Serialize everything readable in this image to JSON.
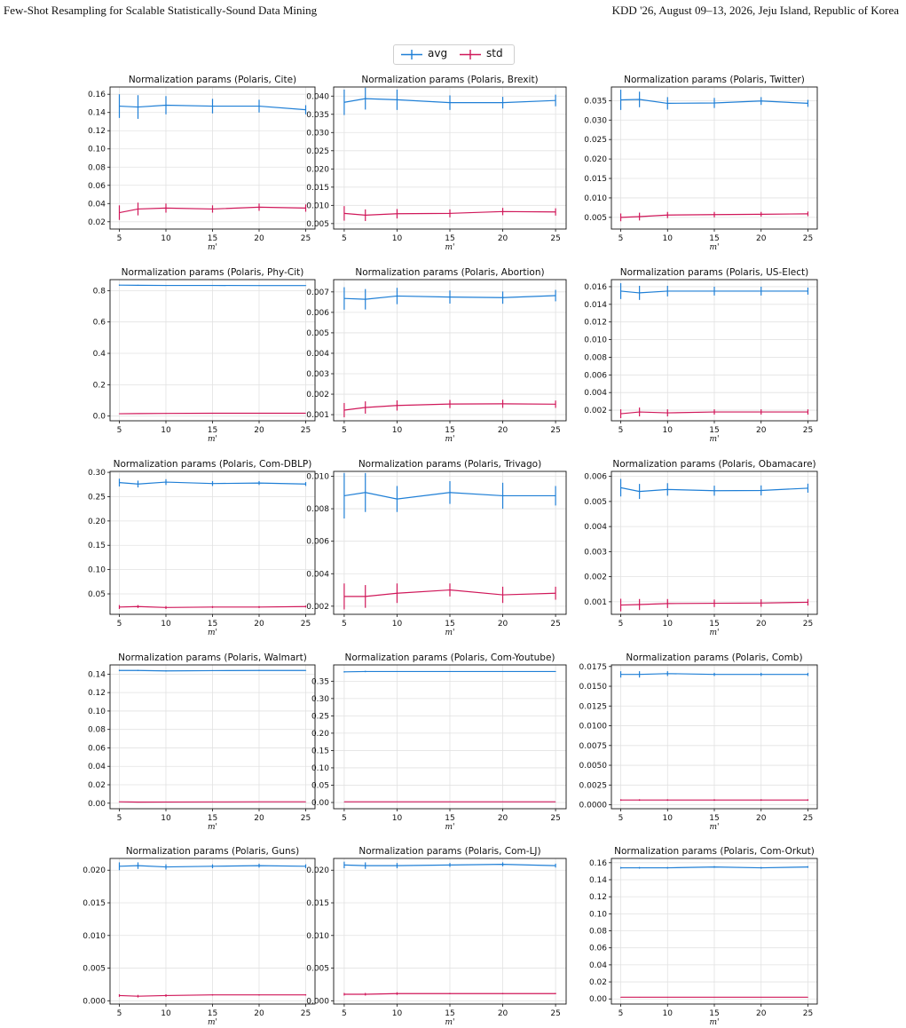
{
  "header": {
    "left": "Few-Shot Resampling for Scalable Statistically-Sound Data Mining",
    "right": "KDD '26, August 09–13, 2026, Jeju Island, Republic of Korea"
  },
  "legend": {
    "items": [
      "avg",
      "std"
    ]
  },
  "colors": {
    "avg": "#1f7fd6",
    "std": "#d0185a",
    "grid": "#e2e2e2",
    "axis": "#111111"
  },
  "chart_data": [
    {
      "type": "line",
      "title": "Normalization params (Polaris, Cite)",
      "xlabel": "m'",
      "x": [
        5,
        7,
        10,
        15,
        20,
        25
      ],
      "yticks": [
        "0.02",
        "0.04",
        "0.06",
        "0.08",
        "0.10",
        "0.12",
        "0.14",
        "0.16"
      ],
      "ylim": [
        0.012,
        0.168
      ],
      "series": [
        {
          "name": "avg",
          "values": [
            0.147,
            0.146,
            0.148,
            0.147,
            0.147,
            0.143
          ],
          "err": [
            0.013,
            0.013,
            0.01,
            0.008,
            0.007,
            0.005
          ]
        },
        {
          "name": "std",
          "values": [
            0.03,
            0.034,
            0.035,
            0.034,
            0.036,
            0.035
          ],
          "err": [
            0.008,
            0.007,
            0.005,
            0.004,
            0.004,
            0.004
          ]
        }
      ]
    },
    {
      "type": "line",
      "title": "Normalization params (Polaris, Brexit)",
      "xlabel": "m'",
      "x": [
        5,
        7,
        10,
        15,
        20,
        25
      ],
      "yticks": [
        "0.005",
        "0.010",
        "0.015",
        "0.020",
        "0.025",
        "0.030",
        "0.035",
        "0.040"
      ],
      "ylim": [
        0.0035,
        0.0425
      ],
      "series": [
        {
          "name": "avg",
          "values": [
            0.0383,
            0.0393,
            0.039,
            0.0382,
            0.0382,
            0.0388
          ],
          "err": [
            0.0035,
            0.003,
            0.0028,
            0.002,
            0.0016,
            0.0016
          ]
        },
        {
          "name": "std",
          "values": [
            0.0078,
            0.0073,
            0.0077,
            0.0078,
            0.0083,
            0.0082
          ],
          "err": [
            0.002,
            0.0016,
            0.0013,
            0.0011,
            0.001,
            0.001
          ]
        }
      ]
    },
    {
      "type": "line",
      "title": "Normalization params (Polaris, Twitter)",
      "xlabel": "m'",
      "x": [
        5,
        7,
        10,
        15,
        20,
        25
      ],
      "yticks": [
        "0.005",
        "0.010",
        "0.015",
        "0.020",
        "0.025",
        "0.030",
        "0.035"
      ],
      "ylim": [
        0.002,
        0.0385
      ],
      "series": [
        {
          "name": "avg",
          "values": [
            0.0352,
            0.0353,
            0.0343,
            0.0344,
            0.0349,
            0.0343
          ],
          "err": [
            0.0026,
            0.002,
            0.0016,
            0.0013,
            0.001,
            0.0009
          ]
        },
        {
          "name": "std",
          "values": [
            0.005,
            0.0052,
            0.0056,
            0.0057,
            0.0058,
            0.0059
          ],
          "err": [
            0.001,
            0.001,
            0.0008,
            0.0007,
            0.0006,
            0.0006
          ]
        }
      ]
    },
    {
      "type": "line",
      "title": "Normalization params (Polaris, Phy-Cit)",
      "xlabel": "m'",
      "x": [
        5,
        7,
        10,
        15,
        20,
        25
      ],
      "yticks": [
        "0.0",
        "0.2",
        "0.4",
        "0.6",
        "0.8"
      ],
      "ylim": [
        -0.03,
        0.87
      ],
      "series": [
        {
          "name": "avg",
          "values": [
            0.835,
            0.834,
            0.833,
            0.833,
            0.832,
            0.832
          ],
          "err": [
            0.004,
            0.003,
            0.003,
            0.002,
            0.002,
            0.002
          ]
        },
        {
          "name": "std",
          "values": [
            0.015,
            0.016,
            0.017,
            0.018,
            0.018,
            0.018
          ],
          "err": [
            0.002,
            0.002,
            0.002,
            0.001,
            0.001,
            0.001
          ]
        }
      ]
    },
    {
      "type": "line",
      "title": "Normalization params (Polaris, Abortion)",
      "xlabel": "m'",
      "x": [
        5,
        7,
        10,
        15,
        20,
        25
      ],
      "yticks": [
        "0.001",
        "0.002",
        "0.003",
        "0.004",
        "0.005",
        "0.006",
        "0.007"
      ],
      "ylim": [
        0.0007,
        0.0076
      ],
      "series": [
        {
          "name": "avg",
          "values": [
            0.00668,
            0.00664,
            0.0068,
            0.00675,
            0.00672,
            0.00682
          ],
          "err": [
            0.00055,
            0.0005,
            0.0004,
            0.00032,
            0.0003,
            0.00028
          ]
        },
        {
          "name": "std",
          "values": [
            0.00122,
            0.00135,
            0.00145,
            0.00152,
            0.00153,
            0.00151
          ],
          "err": [
            0.00035,
            0.0003,
            0.00025,
            0.0002,
            0.0002,
            0.00018
          ]
        }
      ]
    },
    {
      "type": "line",
      "title": "Normalization params (Polaris, US-Elect)",
      "xlabel": "m'",
      "x": [
        5,
        7,
        10,
        15,
        20,
        25
      ],
      "yticks": [
        "0.002",
        "0.004",
        "0.006",
        "0.008",
        "0.010",
        "0.012",
        "0.014",
        "0.016"
      ],
      "ylim": [
        0.0008,
        0.0168
      ],
      "series": [
        {
          "name": "avg",
          "values": [
            0.0155,
            0.0153,
            0.0155,
            0.0155,
            0.0155,
            0.0155
          ],
          "err": [
            0.0009,
            0.0008,
            0.0006,
            0.0005,
            0.0005,
            0.0004
          ]
        },
        {
          "name": "std",
          "values": [
            0.0016,
            0.0018,
            0.0017,
            0.0018,
            0.0018,
            0.0018
          ],
          "err": [
            0.0005,
            0.0005,
            0.0004,
            0.0003,
            0.0003,
            0.0003
          ]
        }
      ]
    },
    {
      "type": "line",
      "title": "Normalization params (Polaris, Com-DBLP)",
      "xlabel": "m'",
      "x": [
        5,
        7,
        10,
        15,
        20,
        25
      ],
      "yticks": [
        "0.05",
        "0.10",
        "0.15",
        "0.20",
        "0.25",
        "0.30"
      ],
      "ylim": [
        0.008,
        0.302
      ],
      "series": [
        {
          "name": "avg",
          "values": [
            0.279,
            0.276,
            0.28,
            0.277,
            0.278,
            0.276
          ],
          "err": [
            0.008,
            0.007,
            0.006,
            0.005,
            0.004,
            0.004
          ]
        },
        {
          "name": "std",
          "values": [
            0.023,
            0.024,
            0.022,
            0.023,
            0.023,
            0.024
          ],
          "err": [
            0.004,
            0.003,
            0.003,
            0.002,
            0.002,
            0.002
          ]
        }
      ]
    },
    {
      "type": "line",
      "title": "Normalization params (Polaris, Trivago)",
      "xlabel": "m'",
      "x": [
        5,
        7,
        10,
        15,
        20,
        25
      ],
      "yticks": [
        "0.002",
        "0.004",
        "0.006",
        "0.008",
        "0.010"
      ],
      "ylim": [
        0.0015,
        0.0103
      ],
      "series": [
        {
          "name": "avg",
          "values": [
            0.0088,
            0.009,
            0.0086,
            0.009,
            0.0088,
            0.0088
          ],
          "err": [
            0.0014,
            0.0012,
            0.0008,
            0.0007,
            0.0008,
            0.0006
          ]
        },
        {
          "name": "std",
          "values": [
            0.0026,
            0.0026,
            0.0028,
            0.003,
            0.0027,
            0.0028
          ],
          "err": [
            0.0008,
            0.0007,
            0.0006,
            0.0004,
            0.0005,
            0.0004
          ]
        }
      ]
    },
    {
      "type": "line",
      "title": "Normalization params (Polaris, Obamacare)",
      "xlabel": "m'",
      "x": [
        5,
        7,
        10,
        15,
        20,
        25
      ],
      "yticks": [
        "0.001",
        "0.002",
        "0.003",
        "0.004",
        "0.005",
        "0.006"
      ],
      "ylim": [
        0.0005,
        0.0062
      ],
      "series": [
        {
          "name": "avg",
          "values": [
            0.00555,
            0.0054,
            0.00548,
            0.00543,
            0.00544,
            0.00553
          ],
          "err": [
            0.00035,
            0.0003,
            0.00025,
            0.0002,
            0.0002,
            0.00018
          ]
        },
        {
          "name": "std",
          "values": [
            0.00087,
            0.00089,
            0.00093,
            0.00094,
            0.00095,
            0.00098
          ],
          "err": [
            0.00025,
            0.00022,
            0.00018,
            0.00015,
            0.00015,
            0.00013
          ]
        }
      ]
    },
    {
      "type": "line",
      "title": "Normalization params (Polaris, Walmart)",
      "xlabel": "m'",
      "x": [
        5,
        7,
        10,
        15,
        20,
        25
      ],
      "yticks": [
        "0.00",
        "0.02",
        "0.04",
        "0.06",
        "0.08",
        "0.10",
        "0.12",
        "0.14"
      ],
      "ylim": [
        -0.006,
        0.15
      ],
      "series": [
        {
          "name": "avg",
          "values": [
            0.144,
            0.144,
            0.1435,
            0.1438,
            0.144,
            0.144
          ],
          "err": [
            0.0008,
            0.0007,
            0.0006,
            0.0005,
            0.0005,
            0.0004
          ]
        },
        {
          "name": "std",
          "values": [
            0.0015,
            0.0012,
            0.0013,
            0.0014,
            0.0015,
            0.0015
          ],
          "err": [
            0.0004,
            0.0004,
            0.0003,
            0.0002,
            0.0002,
            0.0002
          ]
        }
      ]
    },
    {
      "type": "line",
      "title": "Normalization params (Polaris, Com-Youtube)",
      "xlabel": "m'",
      "x": [
        5,
        7,
        10,
        15,
        20,
        25
      ],
      "yticks": [
        "0.00",
        "0.05",
        "0.10",
        "0.15",
        "0.20",
        "0.25",
        "0.30",
        "0.35"
      ],
      "ylim": [
        -0.018,
        0.397
      ],
      "series": [
        {
          "name": "avg",
          "values": [
            0.377,
            0.378,
            0.378,
            0.378,
            0.378,
            0.378
          ],
          "err": [
            0.002,
            0.002,
            0.001,
            0.001,
            0.001,
            0.001
          ]
        },
        {
          "name": "std",
          "values": [
            0.002,
            0.002,
            0.002,
            0.002,
            0.002,
            0.002
          ],
          "err": [
            0.0005,
            0.0005,
            0.0004,
            0.0003,
            0.0003,
            0.0003
          ]
        }
      ]
    },
    {
      "type": "line",
      "title": "Normalization params (Polaris, Comb)",
      "xlabel": "m'",
      "x": [
        5,
        7,
        10,
        15,
        20,
        25
      ],
      "yticks": [
        "0.0000",
        "0.0025",
        "0.0050",
        "0.0075",
        "0.0100",
        "0.0125",
        "0.0150",
        "0.0175"
      ],
      "ylim": [
        -0.0005,
        0.0177
      ],
      "series": [
        {
          "name": "avg",
          "values": [
            0.0165,
            0.0165,
            0.0166,
            0.0165,
            0.0165,
            0.0165
          ],
          "err": [
            0.0004,
            0.0004,
            0.0003,
            0.0002,
            0.0002,
            0.0002
          ]
        },
        {
          "name": "std",
          "values": [
            0.0006,
            0.0006,
            0.0006,
            0.0006,
            0.0006,
            0.0006
          ],
          "err": [
            0.0001,
            0.0001,
            0.0001,
            0.0001,
            0.0001,
            0.0001
          ]
        }
      ]
    },
    {
      "type": "line",
      "title": "Normalization params (Polaris, Guns)",
      "xlabel": "m'",
      "x": [
        5,
        7,
        10,
        15,
        20,
        25
      ],
      "yticks": [
        "0.000",
        "0.005",
        "0.010",
        "0.015",
        "0.020"
      ],
      "ylim": [
        -0.0005,
        0.0218
      ],
      "series": [
        {
          "name": "avg",
          "values": [
            0.0206,
            0.0207,
            0.0205,
            0.0206,
            0.0207,
            0.0206
          ],
          "err": [
            0.0006,
            0.0005,
            0.0004,
            0.0003,
            0.0003,
            0.0003
          ]
        },
        {
          "name": "std",
          "values": [
            0.0008,
            0.0007,
            0.0008,
            0.0009,
            0.0009,
            0.0009
          ],
          "err": [
            0.0002,
            0.0002,
            0.0002,
            0.0001,
            0.0001,
            0.0001
          ]
        }
      ]
    },
    {
      "type": "line",
      "title": "Normalization params (Polaris, Com-LJ)",
      "xlabel": "m'",
      "x": [
        5,
        7,
        10,
        15,
        20,
        25
      ],
      "yticks": [
        "0.000",
        "0.005",
        "0.010",
        "0.015",
        "0.020"
      ],
      "ylim": [
        -0.0005,
        0.0218
      ],
      "series": [
        {
          "name": "avg",
          "values": [
            0.0208,
            0.0207,
            0.0207,
            0.0208,
            0.0209,
            0.0207
          ],
          "err": [
            0.0005,
            0.0005,
            0.0004,
            0.0003,
            0.0003,
            0.0003
          ]
        },
        {
          "name": "std",
          "values": [
            0.001,
            0.001,
            0.0011,
            0.0011,
            0.0011,
            0.0011
          ],
          "err": [
            0.0002,
            0.0002,
            0.0002,
            0.0001,
            0.0001,
            0.0001
          ]
        }
      ]
    },
    {
      "type": "line",
      "title": "Normalization params (Polaris, Com-Orkut)",
      "xlabel": "m'",
      "x": [
        5,
        7,
        10,
        15,
        20,
        25
      ],
      "yticks": [
        "0.00",
        "0.02",
        "0.04",
        "0.06",
        "0.08",
        "0.10",
        "0.12",
        "0.14",
        "0.16"
      ],
      "ylim": [
        -0.006,
        0.165
      ],
      "series": [
        {
          "name": "avg",
          "values": [
            0.154,
            0.154,
            0.154,
            0.155,
            0.154,
            0.155
          ],
          "err": [
            0.001,
            0.001,
            0.001,
            0.001,
            0.001,
            0.001
          ]
        },
        {
          "name": "std",
          "values": [
            0.002,
            0.002,
            0.002,
            0.002,
            0.002,
            0.002
          ],
          "err": [
            0.0003,
            0.0003,
            0.0003,
            0.0002,
            0.0002,
            0.0002
          ]
        }
      ]
    }
  ]
}
